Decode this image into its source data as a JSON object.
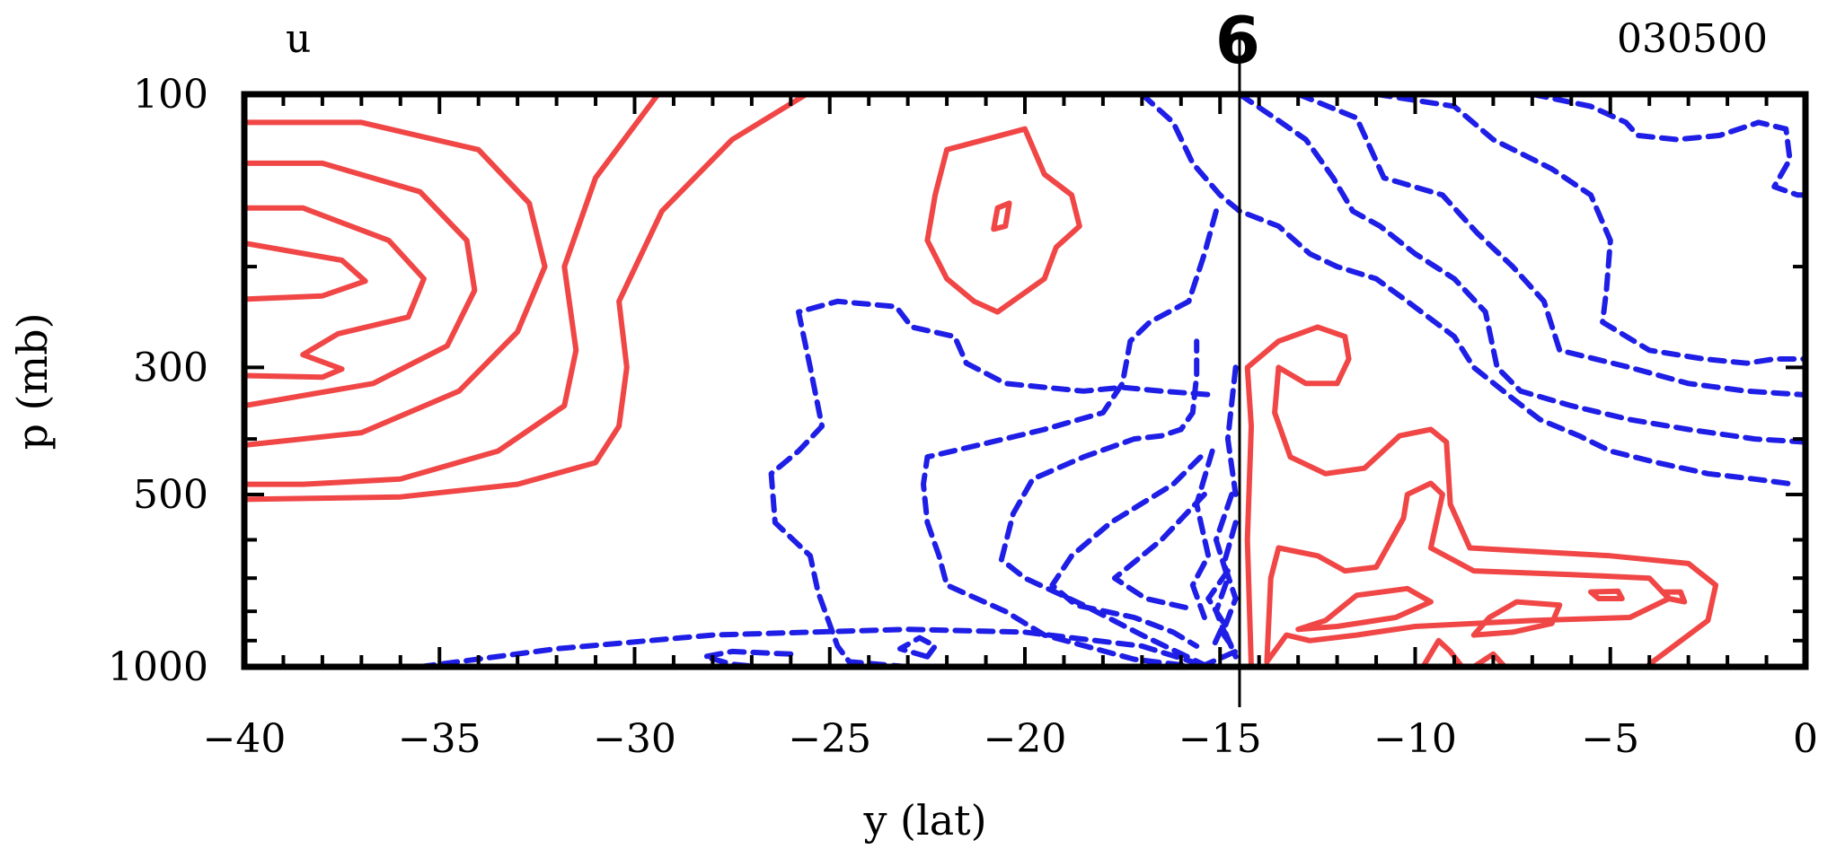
{
  "chart_data": {
    "type": "contour",
    "variable": "u",
    "date": "030500",
    "marker": "6",
    "xlabel": "y (lat)",
    "ylabel": "p (mb)",
    "xlim": [
      -40,
      0
    ],
    "ylim_pressure": [
      1000,
      100
    ],
    "y_scale": "log",
    "x_ticks": [
      -40,
      -35,
      -30,
      -25,
      -20,
      -15,
      -10,
      -5,
      0
    ],
    "x_tick_labels": [
      "−40",
      "−35",
      "−30",
      "−25",
      "−20",
      "−15",
      "−10",
      "−5",
      "0"
    ],
    "y_ticks": [
      100,
      300,
      500,
      1000
    ],
    "y_tick_labels": [
      "100",
      "300",
      "500",
      "1000"
    ],
    "vertical_line_lat": -14.5,
    "colors": {
      "positive": "#f04646",
      "negative": "#1e1ee6",
      "axis": "#000000"
    },
    "positive_contours": [
      [
        [
          -40,
          112
        ],
        [
          -37,
          112
        ],
        [
          -34,
          125
        ],
        [
          -32.7,
          155
        ],
        [
          -32.3,
          200
        ],
        [
          -33,
          260
        ],
        [
          -34.5,
          330
        ],
        [
          -37,
          390
        ],
        [
          -40,
          410
        ]
      ],
      [
        [
          -40,
          132
        ],
        [
          -38,
          132
        ],
        [
          -35.5,
          148
        ],
        [
          -34.3,
          180
        ],
        [
          -34.1,
          220
        ],
        [
          -34.8,
          275
        ],
        [
          -36.7,
          320
        ],
        [
          -40,
          350
        ]
      ],
      [
        [
          -40,
          158
        ],
        [
          -38.5,
          158
        ],
        [
          -36.3,
          180
        ],
        [
          -35.4,
          210
        ],
        [
          -35.8,
          245
        ],
        [
          -37.6,
          262
        ],
        [
          -38.5,
          285
        ],
        [
          -37.5,
          302
        ],
        [
          -38,
          312
        ],
        [
          -40,
          310
        ]
      ],
      [
        [
          -40,
          182
        ],
        [
          -37.5,
          195
        ],
        [
          -36.9,
          212
        ],
        [
          -38,
          225
        ],
        [
          -40,
          228
        ]
      ],
      [
        [
          -40,
          510
        ],
        [
          -36,
          505
        ],
        [
          -33,
          480
        ],
        [
          -31,
          440
        ],
        [
          -30.4,
          380
        ],
        [
          -30.2,
          300
        ],
        [
          -30.4,
          230
        ],
        [
          -29.3,
          160
        ],
        [
          -27.5,
          120
        ],
        [
          -25.6,
          100
        ]
      ],
      [
        [
          -29.4,
          100
        ],
        [
          -31,
          140
        ],
        [
          -31.8,
          200
        ],
        [
          -31.5,
          280
        ],
        [
          -31.8,
          350
        ],
        [
          -33.5,
          420
        ],
        [
          -36,
          470
        ],
        [
          -38.5,
          480
        ],
        [
          -40,
          480
        ]
      ],
      [
        [
          -22,
          125
        ],
        [
          -20,
          115
        ],
        [
          -19.5,
          138
        ],
        [
          -18.8,
          150
        ],
        [
          -18.6,
          170
        ],
        [
          -19.2,
          185
        ],
        [
          -19.5,
          210
        ],
        [
          -20.7,
          240
        ],
        [
          -21.3,
          230
        ],
        [
          -22,
          210
        ],
        [
          -22.5,
          180
        ],
        [
          -22.3,
          150
        ],
        [
          -22,
          125
        ]
      ],
      [
        [
          -20.7,
          158
        ],
        [
          -20.4,
          155
        ],
        [
          -20.5,
          170
        ],
        [
          -20.8,
          172
        ],
        [
          -20.7,
          158
        ]
      ],
      [
        [
          -14.2,
          1000
        ],
        [
          -14.3,
          600
        ],
        [
          -14.2,
          380
        ],
        [
          -14.3,
          300
        ],
        [
          -13.5,
          270
        ],
        [
          -12.5,
          255
        ],
        [
          -11.8,
          265
        ],
        [
          -11.7,
          290
        ],
        [
          -12,
          320
        ],
        [
          -12.8,
          320
        ],
        [
          -13.5,
          300
        ],
        [
          -13.6,
          360
        ],
        [
          -13.2,
          430
        ],
        [
          -12.3,
          460
        ],
        [
          -11.3,
          450
        ],
        [
          -10.4,
          395
        ],
        [
          -9.6,
          385
        ],
        [
          -9.2,
          405
        ],
        [
          -9.1,
          520
        ],
        [
          -8.6,
          620
        ],
        [
          -5,
          640
        ],
        [
          -3,
          660
        ],
        [
          -2.3,
          720
        ],
        [
          -2.5,
          830
        ],
        [
          -4,
          990
        ]
      ],
      [
        [
          -13.8,
          980
        ],
        [
          -13.7,
          700
        ],
        [
          -13.5,
          620
        ],
        [
          -12.5,
          640
        ],
        [
          -11.8,
          680
        ],
        [
          -11,
          670
        ],
        [
          -10.3,
          550
        ],
        [
          -10.2,
          500
        ],
        [
          -9.6,
          478
        ],
        [
          -9.3,
          500
        ],
        [
          -9.6,
          620
        ],
        [
          -8.5,
          680
        ],
        [
          -6,
          690
        ],
        [
          -4,
          700
        ],
        [
          -3.5,
          760
        ],
        [
          -4.5,
          820
        ],
        [
          -7,
          830
        ],
        [
          -8.5,
          840
        ],
        [
          -10,
          850
        ],
        [
          -11.5,
          880
        ],
        [
          -12.7,
          900
        ],
        [
          -13.3,
          880
        ],
        [
          -13.8,
          980
        ]
      ],
      [
        [
          -13,
          860
        ],
        [
          -12.3,
          830
        ],
        [
          -11.5,
          750
        ],
        [
          -10.2,
          730
        ],
        [
          -9.6,
          770
        ],
        [
          -10.5,
          820
        ],
        [
          -12,
          850
        ],
        [
          -13,
          860
        ]
      ],
      [
        [
          -8.5,
          880
        ],
        [
          -8.1,
          820
        ],
        [
          -7.4,
          770
        ],
        [
          -6.3,
          780
        ],
        [
          -6.5,
          840
        ],
        [
          -7.5,
          870
        ],
        [
          -8.5,
          880
        ]
      ],
      [
        [
          -5.3,
          760
        ],
        [
          -5.5,
          740
        ],
        [
          -4.8,
          738
        ],
        [
          -4.7,
          760
        ],
        [
          -5.3,
          760
        ]
      ],
      [
        [
          -3.5,
          760
        ],
        [
          -3.6,
          740
        ],
        [
          -3.2,
          740
        ],
        [
          -3.1,
          770
        ],
        [
          -3.5,
          760
        ]
      ],
      [
        [
          -9.8,
          1000
        ],
        [
          -9.4,
          900
        ],
        [
          -9.1,
          940
        ],
        [
          -8.8,
          1000
        ]
      ],
      [
        [
          -8.5,
          1000
        ],
        [
          -8,
          950
        ],
        [
          -7.7,
          1000
        ]
      ]
    ],
    "negative_contours": [
      [
        [
          -35.5,
          1000
        ],
        [
          -32,
          930
        ],
        [
          -28,
          880
        ],
        [
          -23,
          860
        ],
        [
          -20,
          870
        ],
        [
          -17,
          920
        ],
        [
          -15.5,
          990
        ],
        [
          -15.2,
          1000
        ]
      ],
      [
        [
          -23,
          1000
        ],
        [
          -24.5,
          980
        ],
        [
          -24.8,
          920
        ],
        [
          -25.3,
          740
        ],
        [
          -25.5,
          640
        ],
        [
          -26.4,
          560
        ],
        [
          -26.5,
          460
        ],
        [
          -25.8,
          420
        ],
        [
          -25.2,
          380
        ],
        [
          -25.5,
          300
        ],
        [
          -25.8,
          240
        ],
        [
          -24.8,
          230
        ],
        [
          -23.3,
          235
        ],
        [
          -22.9,
          255
        ],
        [
          -21.8,
          265
        ],
        [
          -21.5,
          295
        ],
        [
          -20.5,
          320
        ],
        [
          -18.5,
          330
        ],
        [
          -17.5,
          325
        ],
        [
          -16.5,
          330
        ],
        [
          -15.2,
          335
        ]
      ],
      [
        [
          -15.1,
          160
        ],
        [
          -15.4,
          190
        ],
        [
          -15.8,
          230
        ],
        [
          -16.8,
          250
        ],
        [
          -17.3,
          270
        ],
        [
          -17.5,
          320
        ],
        [
          -18,
          360
        ],
        [
          -19.5,
          385
        ],
        [
          -21.2,
          410
        ],
        [
          -22.5,
          430
        ],
        [
          -22.6,
          480
        ],
        [
          -22.5,
          560
        ],
        [
          -22.2,
          640
        ],
        [
          -22,
          720
        ],
        [
          -20.5,
          800
        ],
        [
          -19.5,
          880
        ],
        [
          -17.2,
          970
        ],
        [
          -15.6,
          1000
        ]
      ],
      [
        [
          -15.3,
          1000
        ],
        [
          -17,
          880
        ],
        [
          -18.5,
          780
        ],
        [
          -20,
          700
        ],
        [
          -20.6,
          650
        ],
        [
          -20.3,
          540
        ],
        [
          -19.8,
          470
        ],
        [
          -18.5,
          430
        ],
        [
          -17.2,
          400
        ],
        [
          -16.5,
          395
        ],
        [
          -16,
          385
        ],
        [
          -15.7,
          360
        ],
        [
          -15.6,
          310
        ],
        [
          -15.6,
          270
        ]
      ],
      [
        [
          -15.5,
          430
        ],
        [
          -16.2,
          480
        ],
        [
          -17.8,
          560
        ],
        [
          -18.8,
          640
        ],
        [
          -19.3,
          720
        ],
        [
          -18.7,
          780
        ],
        [
          -17.2,
          820
        ],
        [
          -16.2,
          870
        ],
        [
          -15.6,
          920
        ]
      ],
      [
        [
          -15.4,
          500
        ],
        [
          -16.5,
          600
        ],
        [
          -17.7,
          700
        ],
        [
          -16.9,
          760
        ],
        [
          -15.8,
          790
        ]
      ],
      [
        [
          -22.5,
          960
        ],
        [
          -23.2,
          930
        ],
        [
          -22.7,
          890
        ],
        [
          -22.3,
          920
        ],
        [
          -22.5,
          960
        ]
      ],
      [
        [
          -26,
          950
        ],
        [
          -27.5,
          940
        ],
        [
          -28.2,
          960
        ],
        [
          -27.5,
          990
        ],
        [
          -26.8,
          1000
        ]
      ],
      [
        [
          -15.2,
          420
        ],
        [
          -15.6,
          520
        ],
        [
          -15.3,
          640
        ],
        [
          -15.7,
          720
        ],
        [
          -15.4,
          820
        ]
      ],
      [
        [
          -14.8,
          680
        ],
        [
          -15.3,
          760
        ],
        [
          -14.9,
          840
        ],
        [
          -15.2,
          930
        ]
      ],
      [
        [
          -14.7,
          500
        ],
        [
          -15.1,
          600
        ],
        [
          -14.8,
          700
        ],
        [
          -15.1,
          800
        ],
        [
          -14.8,
          900
        ]
      ],
      [
        [
          -14.6,
          560
        ],
        [
          -14.9,
          660
        ],
        [
          -14.6,
          760
        ],
        [
          -14.9,
          860
        ],
        [
          -14.6,
          960
        ]
      ],
      [
        [
          -15.5,
          1000
        ],
        [
          -14.6,
          940
        ],
        [
          -14.9,
          880
        ]
      ],
      [
        [
          -17,
          100
        ],
        [
          -16.2,
          112
        ],
        [
          -15.7,
          132
        ],
        [
          -15,
          150
        ],
        [
          -14.5,
          160
        ],
        [
          -13.5,
          170
        ],
        [
          -12.7,
          190
        ],
        [
          -12,
          200
        ],
        [
          -11,
          210
        ],
        [
          -10.2,
          230
        ],
        [
          -9,
          265
        ],
        [
          -8.5,
          300
        ],
        [
          -7.5,
          340
        ],
        [
          -6.8,
          370
        ],
        [
          -5.8,
          395
        ],
        [
          -5,
          420
        ],
        [
          -3.8,
          440
        ],
        [
          -2.5,
          460
        ],
        [
          -1.3,
          470
        ],
        [
          -0.3,
          480
        ]
      ],
      [
        [
          -14.5,
          100
        ],
        [
          -13.6,
          110
        ],
        [
          -12.8,
          120
        ],
        [
          -12.1,
          140
        ],
        [
          -11.6,
          160
        ],
        [
          -10.9,
          170
        ],
        [
          -10,
          190
        ],
        [
          -9,
          210
        ],
        [
          -8.2,
          240
        ],
        [
          -7.9,
          300
        ],
        [
          -7.3,
          330
        ],
        [
          -6,
          350
        ],
        [
          -4.5,
          370
        ],
        [
          -3,
          385
        ],
        [
          -1.3,
          400
        ],
        [
          0,
          405
        ]
      ],
      [
        [
          -13,
          100
        ],
        [
          -11.5,
          110
        ],
        [
          -10.8,
          140
        ],
        [
          -9.3,
          150
        ],
        [
          -8.4,
          175
        ],
        [
          -7.5,
          200
        ],
        [
          -6.7,
          230
        ],
        [
          -6.3,
          280
        ],
        [
          -4.5,
          300
        ],
        [
          -3,
          320
        ],
        [
          -1.5,
          330
        ],
        [
          0,
          335
        ]
      ],
      [
        [
          -11,
          100
        ],
        [
          -9,
          105
        ],
        [
          -8,
          120
        ],
        [
          -6.5,
          135
        ],
        [
          -5.5,
          150
        ],
        [
          -5,
          180
        ],
        [
          -5.1,
          220
        ],
        [
          -5.2,
          250
        ],
        [
          -4,
          280
        ],
        [
          -2.6,
          290
        ],
        [
          -1.5,
          295
        ],
        [
          -0.8,
          290
        ],
        [
          0,
          290
        ]
      ],
      [
        [
          -7,
          100
        ],
        [
          -5.5,
          105
        ],
        [
          -4.6,
          112
        ],
        [
          -4.3,
          118
        ],
        [
          -3.3,
          120
        ],
        [
          -2.2,
          118
        ],
        [
          -1.2,
          112
        ],
        [
          -0.5,
          115
        ],
        [
          -0.4,
          130
        ],
        [
          -0.8,
          145
        ],
        [
          -0.2,
          150
        ],
        [
          0,
          150
        ]
      ],
      [
        [
          -14.6,
          300
        ],
        [
          -14.8,
          400
        ],
        [
          -14.6,
          500
        ]
      ]
    ]
  }
}
